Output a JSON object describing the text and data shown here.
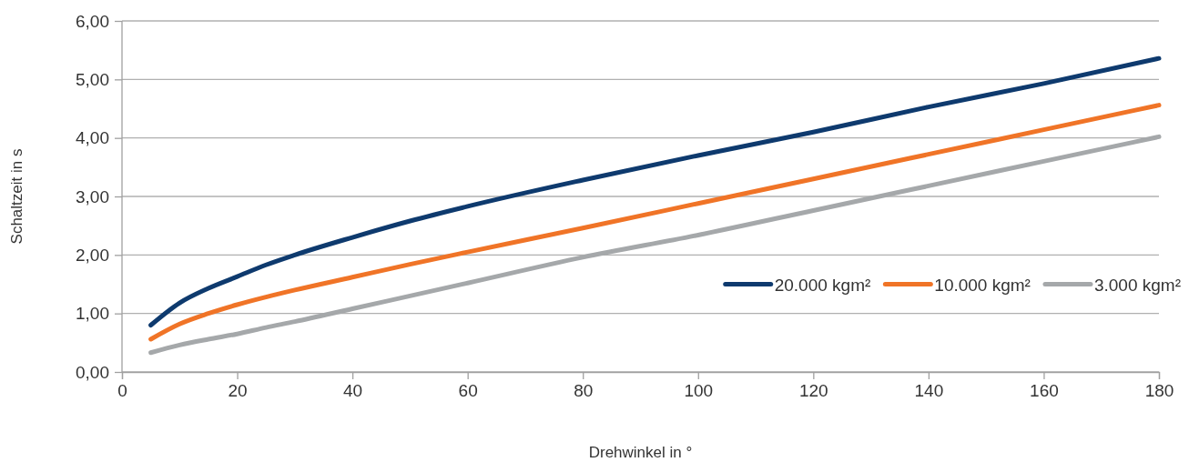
{
  "chart_data": {
    "type": "line",
    "xlabel": "Drehwinkel in °",
    "ylabel": "Schaltzeit in s",
    "x": [
      5,
      10,
      15,
      20,
      25,
      30,
      40,
      50,
      60,
      80,
      100,
      120,
      140,
      160,
      180
    ],
    "series": [
      {
        "name": "20.000 kgm²",
        "color": "#0e3a6e",
        "values": [
          0.8,
          1.18,
          1.43,
          1.63,
          1.83,
          2.0,
          2.3,
          2.58,
          2.83,
          3.28,
          3.7,
          4.1,
          4.53,
          4.93,
          5.36
        ]
      },
      {
        "name": "10.000 kgm²",
        "color": "#f07427",
        "values": [
          0.56,
          0.82,
          1.0,
          1.15,
          1.28,
          1.4,
          1.62,
          1.84,
          2.05,
          2.46,
          2.88,
          3.3,
          3.72,
          4.14,
          4.56
        ]
      },
      {
        "name": "3.000 kgm²",
        "color": "#a5a8aa",
        "values": [
          0.33,
          0.46,
          0.56,
          0.65,
          0.76,
          0.86,
          1.08,
          1.3,
          1.52,
          1.96,
          2.34,
          2.76,
          3.18,
          3.6,
          4.02
        ]
      }
    ],
    "xlim": [
      0,
      180
    ],
    "xticks": [
      0,
      20,
      40,
      60,
      80,
      100,
      120,
      140,
      160,
      180
    ],
    "ylim": [
      0,
      6
    ],
    "yticks": [
      {
        "value": 0,
        "label": "0,00"
      },
      {
        "value": 1,
        "label": "1,00"
      },
      {
        "value": 2,
        "label": "2,00"
      },
      {
        "value": 3,
        "label": "3,00"
      },
      {
        "value": 4,
        "label": "4,00"
      },
      {
        "value": 5,
        "label": "5,00"
      },
      {
        "value": 6,
        "label": "6,00"
      }
    ],
    "grid": "y",
    "legend": "right",
    "marker": "none",
    "line_style": "solid"
  }
}
